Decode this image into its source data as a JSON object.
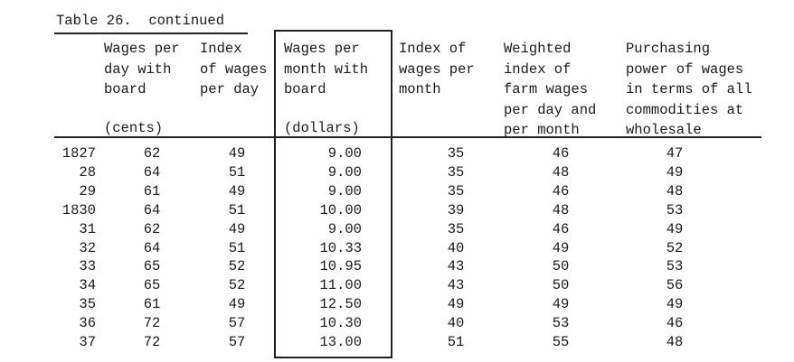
{
  "caption": "Table 26.  continued",
  "columns": [
    {
      "header": "Wages per\nday with\nboard",
      "unit": "(cents)"
    },
    {
      "header": "Index\nof wages\nper day",
      "unit": ""
    },
    {
      "header": "Wages per\nmonth with\nboard",
      "unit": "(dollars)"
    },
    {
      "header": "Index of\nwages per\nmonth",
      "unit": ""
    },
    {
      "header": "Weighted\nindex of\nfarm wages\nper day and\nper month",
      "unit": ""
    },
    {
      "header": "Purchasing\npower of wages\nin terms of all\ncommodities at\nwholesale",
      "unit": ""
    }
  ],
  "rows": [
    {
      "year": "1827",
      "values": [
        "62",
        "49",
        "9.00",
        "35",
        "46",
        "47"
      ]
    },
    {
      "year": "28",
      "values": [
        "64",
        "51",
        "9.00",
        "35",
        "48",
        "49"
      ]
    },
    {
      "year": "29",
      "values": [
        "61",
        "49",
        "9.00",
        "35",
        "46",
        "48"
      ]
    },
    {
      "year": "1830",
      "values": [
        "64",
        "51",
        "10.00",
        "39",
        "48",
        "53"
      ]
    },
    {
      "year": "31",
      "values": [
        "62",
        "49",
        "9.00",
        "35",
        "46",
        "49"
      ]
    },
    {
      "year": "32",
      "values": [
        "64",
        "51",
        "10.33",
        "40",
        "49",
        "52"
      ]
    },
    {
      "year": "33",
      "values": [
        "65",
        "52",
        "10.95",
        "43",
        "50",
        "53"
      ]
    },
    {
      "year": "34",
      "values": [
        "65",
        "52",
        "11.00",
        "43",
        "50",
        "56"
      ]
    },
    {
      "year": "35",
      "values": [
        "61",
        "49",
        "12.50",
        "49",
        "49",
        "49"
      ]
    },
    {
      "year": "36",
      "values": [
        "72",
        "57",
        "10.30",
        "40",
        "53",
        "46"
      ]
    },
    {
      "year": "37",
      "values": [
        "72",
        "57",
        "13.00",
        "51",
        "55",
        "48"
      ]
    }
  ]
}
